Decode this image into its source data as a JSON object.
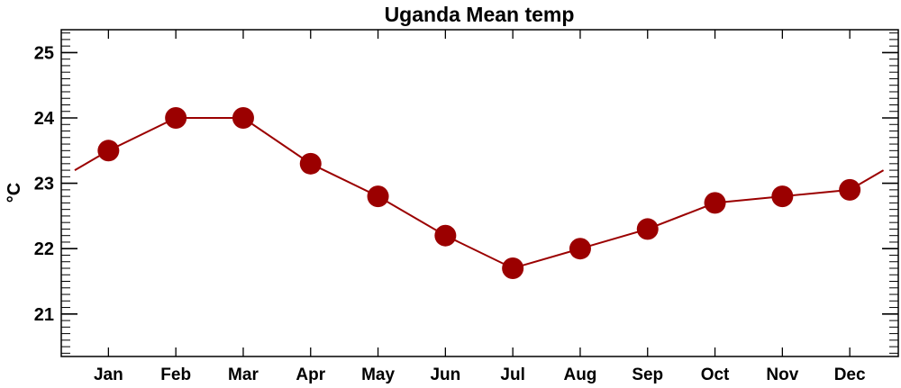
{
  "chart_data": {
    "type": "line",
    "title": "Uganda Mean temp",
    "xlabel": "",
    "ylabel": "°C",
    "categories": [
      "Jan",
      "Feb",
      "Mar",
      "Apr",
      "May",
      "Jun",
      "Jul",
      "Aug",
      "Sep",
      "Oct",
      "Nov",
      "Dec"
    ],
    "x": [
      1,
      2,
      3,
      4,
      5,
      6,
      7,
      8,
      9,
      10,
      11,
      12
    ],
    "values": [
      23.5,
      24.0,
      24.0,
      23.3,
      22.8,
      22.2,
      21.7,
      22.0,
      22.3,
      22.7,
      22.8,
      22.9
    ],
    "line_extensions": [
      {
        "x": 0.5,
        "y": 23.2
      },
      {
        "x": 12.5,
        "y": 23.2
      }
    ],
    "xlim": [
      0.3,
      12.72
    ],
    "ylim": [
      20.35,
      25.35
    ],
    "yticks": [
      21,
      22,
      23,
      24,
      25
    ],
    "yminor_step": 0.1,
    "grid": false,
    "color": "#9b0000"
  }
}
